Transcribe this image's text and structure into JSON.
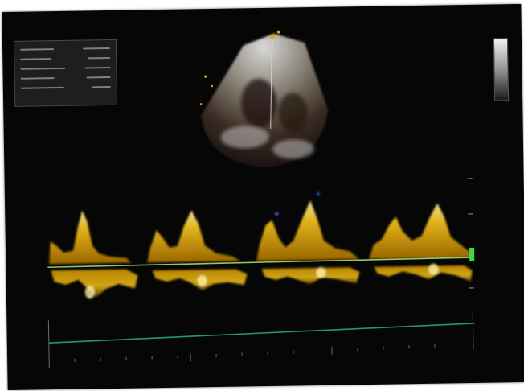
{
  "screen": {
    "background": "#060606",
    "spectral_color": "#f0b400",
    "baseline_color": "#7fd36a",
    "sweep_line_color": "#2aa38a",
    "marker_color": "#35e03a"
  },
  "measurements": {
    "rows": [
      {
        "label": "",
        "value": ""
      },
      {
        "label": "",
        "value": ""
      },
      {
        "label": "",
        "value": ""
      },
      {
        "label": "",
        "value": ""
      },
      {
        "label": "",
        "value": ""
      },
      {
        "label": "",
        "value": ""
      }
    ]
  },
  "axis": {
    "tick_labels": [
      "",
      "",
      "",
      "",
      ""
    ]
  },
  "icons": {
    "scale_bar": "grayscale-bar-icon",
    "baseline_marker": "green-marker-icon"
  }
}
